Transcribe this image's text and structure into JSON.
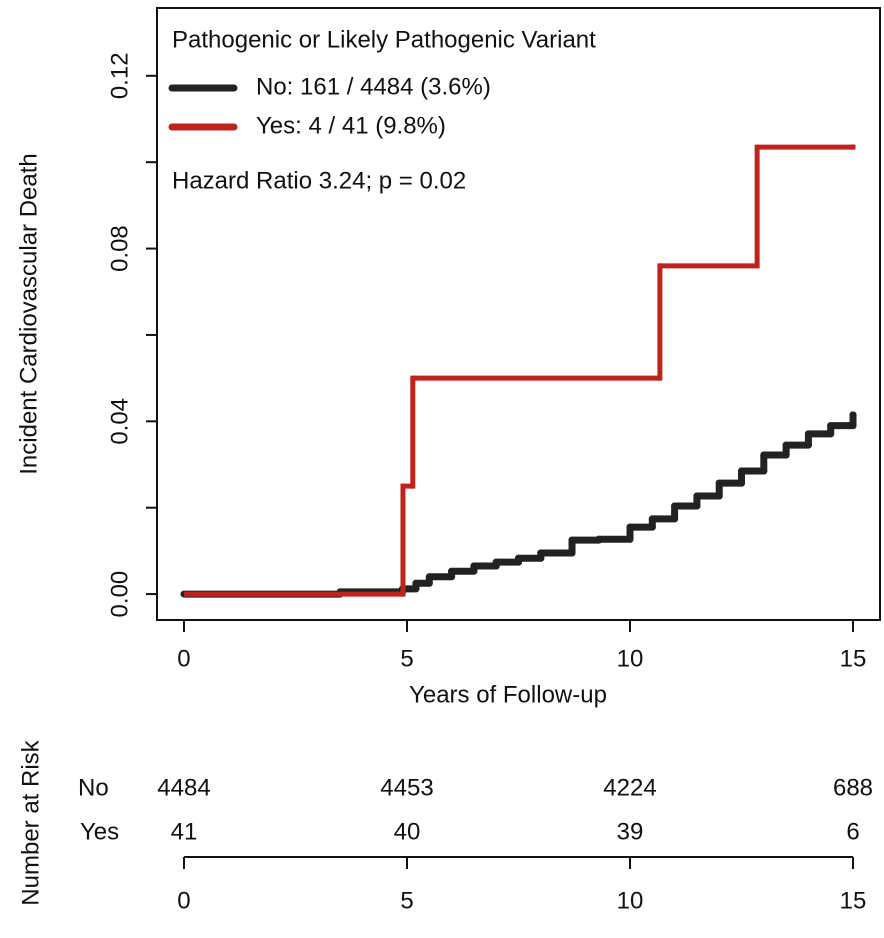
{
  "chart_data": {
    "type": "step",
    "legend_title": "Pathogenic or Likely Pathogenic Variant",
    "annotation": "Hazard Ratio 3.24; p = 0.02",
    "xlabel": "Years of Follow-up",
    "ylabel": "Incident Cardiovascular Death",
    "xlim": [
      -0.605,
      15.605
    ],
    "ylim": [
      -0.006,
      0.1357
    ],
    "xticks": [
      0,
      5,
      10,
      15
    ],
    "yticks": [
      {
        "value": 0,
        "label": "0.00"
      },
      0.04,
      0.08,
      0.12
    ],
    "yminor_ticks": [
      0.02,
      0.06,
      0.1
    ],
    "series": [
      {
        "name": "No: 161 / 4484 (3.6%)",
        "color": "#222222",
        "x": [
          0,
          3.5,
          4.9,
          5.2,
          5.5,
          6,
          6.5,
          7,
          7.5,
          8,
          8.7,
          9.3,
          10,
          10.5,
          11,
          11.5,
          12,
          12.5,
          13,
          13.5,
          14,
          14.5,
          14.9,
          15
        ],
        "values": [
          0,
          0.0005,
          0.0012,
          0.0025,
          0.004,
          0.0053,
          0.0065,
          0.0074,
          0.0083,
          0.0095,
          0.0125,
          0.0127,
          0.0155,
          0.0174,
          0.0204,
          0.0227,
          0.0257,
          0.0285,
          0.0322,
          0.0345,
          0.0371,
          0.039,
          0.039,
          0.0415
        ]
      },
      {
        "name": "Yes: 4 / 41 (9.8%)",
        "color": "#c0231b",
        "x": [
          0,
          4.91,
          5.13,
          10.67,
          12.85,
          15
        ],
        "values": [
          0,
          0.025,
          0.05,
          0.076,
          0.1035,
          0.1035
        ]
      }
    ],
    "risk_table": {
      "title": "Number at Risk",
      "times": [
        0,
        5,
        10,
        15
      ],
      "rows": [
        {
          "name": "No",
          "color": "#111111",
          "values": [
            4484,
            4453,
            4224,
            688
          ]
        },
        {
          "name": "Yes",
          "color": "#c0231b",
          "values": [
            41,
            40,
            39,
            6
          ]
        }
      ]
    }
  }
}
